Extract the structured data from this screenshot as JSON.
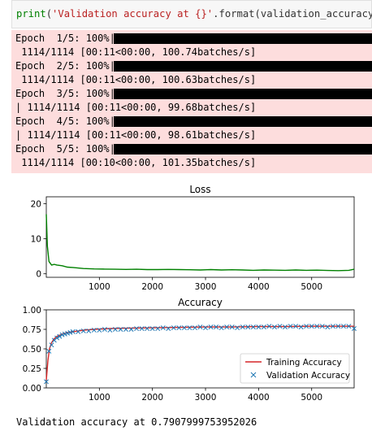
{
  "code_cell": {
    "kw": "print",
    "p1": "(",
    "str": "'Validation accuracy at {}'",
    "rest": ".format(validation_accuracy))"
  },
  "progress": [
    {
      "line1": "Epoch  1/5: 100%|",
      "line2": " 1114/1114 [00:11<00:00, 100.74batches/s]"
    },
    {
      "line1": "Epoch  2/5: 100%|",
      "line2": " 1114/1114 [00:11<00:00, 100.63batches/s]"
    },
    {
      "line1": "Epoch  3/5: 100%|",
      "line2": "| 1114/1114 [00:11<00:00, 99.68batches/s]"
    },
    {
      "line1": "Epoch  4/5: 100%|",
      "line2": "| 1114/1114 [00:11<00:00, 98.61batches/s]"
    },
    {
      "line1": "Epoch  5/5: 100%|",
      "line2": " 1114/1114 [00:10<00:00, 101.35batches/s]"
    }
  ],
  "final_output": "Validation accuracy at 0.7907999753952026",
  "chart_data": [
    {
      "type": "line",
      "title": "Loss",
      "xlim": [
        0,
        5800
      ],
      "ylim": [
        -1,
        22
      ],
      "xticks": [
        1000,
        2000,
        3000,
        4000,
        5000
      ],
      "yticks": [
        0,
        10,
        20
      ],
      "series": [
        {
          "color": "#008000",
          "x": [
            0,
            20,
            50,
            100,
            150,
            200,
            300,
            400,
            500,
            700,
            900,
            1100,
            1300,
            1500,
            1700,
            1900,
            2100,
            2300,
            2500,
            2700,
            2900,
            3100,
            3300,
            3500,
            3700,
            3900,
            4100,
            4300,
            4500,
            4700,
            4900,
            5100,
            5300,
            5500,
            5700,
            5800
          ],
          "y": [
            17,
            8,
            3.5,
            2.5,
            2.7,
            2.5,
            2.3,
            1.9,
            1.8,
            1.5,
            1.4,
            1.35,
            1.3,
            1.25,
            1.3,
            1.2,
            1.2,
            1.25,
            1.2,
            1.15,
            1.1,
            1.2,
            1.1,
            1.15,
            1.1,
            1.0,
            1.1,
            1.05,
            1.0,
            1.1,
            1.0,
            1.05,
            0.95,
            0.9,
            1.0,
            1.3
          ]
        }
      ]
    },
    {
      "type": "line",
      "title": "Accuracy",
      "xlim": [
        0,
        5800
      ],
      "ylim": [
        0,
        1
      ],
      "xticks": [
        1000,
        2000,
        3000,
        4000,
        5000
      ],
      "yticks": [
        "0.00",
        "0.25",
        "0.50",
        "0.75",
        "1.00"
      ],
      "legend": "lower-right",
      "series": [
        {
          "name": "Training Accuracy",
          "color": "#d62728",
          "x": [
            0,
            30,
            60,
            100,
            150,
            200,
            300,
            400,
            500,
            700,
            900,
            1200,
            1500,
            2000,
            2500,
            3000,
            3500,
            4000,
            4500,
            5000,
            5500,
            5800
          ],
          "y": [
            0.1,
            0.35,
            0.5,
            0.58,
            0.63,
            0.66,
            0.69,
            0.71,
            0.72,
            0.74,
            0.75,
            0.76,
            0.765,
            0.77,
            0.775,
            0.78,
            0.78,
            0.785,
            0.785,
            0.79,
            0.79,
            0.79
          ]
        },
        {
          "name": "Validation Accuracy",
          "color": "#1f77b4",
          "marker": "x",
          "x": [
            0,
            50,
            100,
            150,
            200,
            250,
            300,
            350,
            400,
            450,
            500,
            600,
            700,
            800,
            900,
            1000,
            1100,
            1200,
            1300,
            1400,
            1500,
            1600,
            1700,
            1800,
            1900,
            2000,
            2100,
            2200,
            2300,
            2400,
            2500,
            2600,
            2700,
            2800,
            2900,
            3000,
            3100,
            3200,
            3300,
            3400,
            3500,
            3600,
            3700,
            3800,
            3900,
            4000,
            4100,
            4200,
            4300,
            4400,
            4500,
            4600,
            4700,
            4800,
            4900,
            5000,
            5100,
            5200,
            5300,
            5400,
            5500,
            5600,
            5700,
            5800
          ],
          "y": [
            0.08,
            0.47,
            0.55,
            0.61,
            0.64,
            0.66,
            0.68,
            0.69,
            0.7,
            0.71,
            0.72,
            0.72,
            0.73,
            0.73,
            0.74,
            0.74,
            0.75,
            0.74,
            0.75,
            0.75,
            0.75,
            0.75,
            0.76,
            0.76,
            0.76,
            0.76,
            0.76,
            0.77,
            0.76,
            0.77,
            0.77,
            0.77,
            0.77,
            0.77,
            0.78,
            0.77,
            0.78,
            0.78,
            0.77,
            0.78,
            0.78,
            0.77,
            0.78,
            0.78,
            0.78,
            0.78,
            0.78,
            0.79,
            0.78,
            0.79,
            0.78,
            0.79,
            0.79,
            0.78,
            0.79,
            0.79,
            0.79,
            0.79,
            0.78,
            0.79,
            0.79,
            0.79,
            0.79,
            0.76
          ]
        }
      ]
    }
  ]
}
